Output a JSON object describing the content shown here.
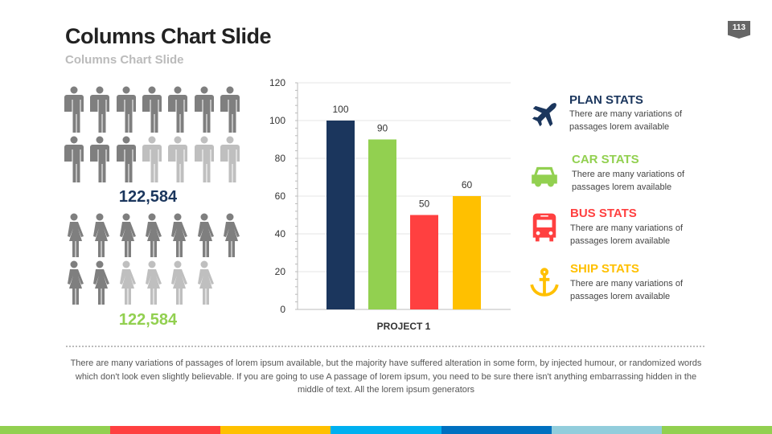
{
  "slide": {
    "title": "Columns Chart Slide",
    "subtitle": "Columns Chart Slide",
    "page_number": "113"
  },
  "people": {
    "men": {
      "total": 14,
      "highlighted": 10,
      "count_label": "122,584",
      "label_color": "#1b365d"
    },
    "women": {
      "total": 13,
      "highlighted": 9,
      "count_label": "122,584",
      "label_color": "#92d050"
    }
  },
  "chart_data": {
    "type": "bar",
    "categories": [
      "PROJECT 1"
    ],
    "series": [
      {
        "values": [
          100
        ],
        "color": "#1b365d"
      },
      {
        "values": [
          90
        ],
        "color": "#92d050"
      },
      {
        "values": [
          50
        ],
        "color": "#ff4040"
      },
      {
        "values": [
          60
        ],
        "color": "#ffc000"
      }
    ],
    "data_labels": [
      "100",
      "90",
      "50",
      "60"
    ],
    "xlabel": "PROJECT 1",
    "ylim": [
      0,
      120
    ],
    "yticks": [
      "0",
      "20",
      "40",
      "60",
      "80",
      "100",
      "120"
    ],
    "grid": true
  },
  "stats": [
    {
      "icon": "airplane-icon",
      "title": "PLAN STATS",
      "text": "There are many variations of passages lorem available",
      "color": "#1b365d"
    },
    {
      "icon": "car-icon",
      "title": "CAR STATS",
      "text": "There are many variations of passages lorem available",
      "color": "#92d050"
    },
    {
      "icon": "bus-icon",
      "title": "BUS STATS",
      "text": "There are many variations of passages lorem available",
      "color": "#ff4040"
    },
    {
      "icon": "anchor-icon",
      "title": "SHIP STATS",
      "text": "There are many variations of passages lorem available",
      "color": "#ffc000"
    }
  ],
  "footer": {
    "text": "There are many variations of passages of lorem ipsum available, but the majority have suffered alteration in some form, by injected humour, or randomized words which don't look even slightly believable. If you are going to use A passage of lorem ipsum, you need to be sure there isn't anything embarrassing hidden in the middle of text. All the lorem ipsum generators",
    "bar_colors": [
      "#92d050",
      "#ff4040",
      "#ffc000",
      "#00b0f0",
      "#0070c0",
      "#92cddc",
      "#92d050"
    ]
  }
}
